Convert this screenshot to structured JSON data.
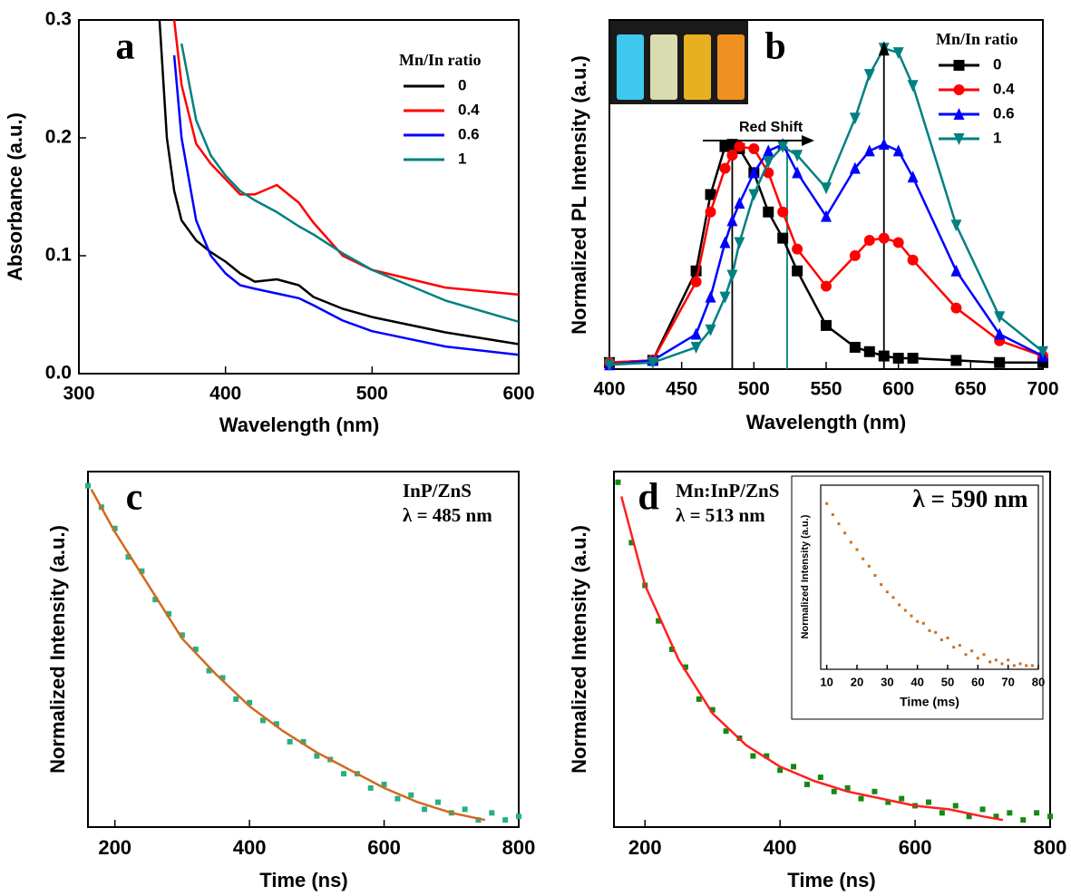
{
  "chart_data": [
    {
      "type": "line",
      "label": "a",
      "xlabel": "Wavelength (nm)",
      "ylabel": "Absorbance (a.u.)",
      "xlim": [
        300,
        600
      ],
      "xticks": [
        300,
        400,
        500,
        600
      ],
      "ylim": [
        0,
        0.3
      ],
      "yticks": [
        {
          "value": 0,
          "label": "0.0"
        },
        0.1,
        0.2,
        0.3
      ],
      "legend_title": "Mn/In ratio",
      "x": [
        355,
        360,
        365,
        370,
        380,
        390,
        400,
        410,
        420,
        435,
        450,
        460,
        480,
        500,
        550,
        600
      ],
      "series": [
        {
          "name": "0",
          "color": "#000000",
          "values": [
            0.3,
            0.2,
            0.155,
            0.13,
            0.113,
            0.103,
            0.095,
            0.085,
            0.078,
            0.08,
            0.075,
            0.065,
            0.055,
            0.048,
            0.035,
            0.025
          ]
        },
        {
          "name": "0.4",
          "color": "#ff0000",
          "values": [
            null,
            null,
            0.3,
            0.245,
            0.195,
            0.178,
            0.165,
            0.152,
            0.152,
            0.16,
            0.145,
            0.128,
            0.1,
            0.088,
            0.073,
            0.067
          ]
        },
        {
          "name": "0.6",
          "color": "#0000ff",
          "values": [
            null,
            null,
            0.27,
            0.2,
            0.13,
            0.1,
            0.085,
            0.075,
            0.072,
            0.068,
            0.064,
            0.058,
            0.045,
            0.036,
            0.023,
            0.016
          ]
        },
        {
          "name": "1",
          "color": "#008080",
          "values": [
            null,
            null,
            null,
            0.28,
            0.215,
            0.185,
            0.168,
            0.155,
            0.147,
            0.137,
            0.125,
            0.118,
            0.102,
            0.088,
            0.062,
            0.044
          ]
        }
      ]
    },
    {
      "type": "line",
      "label": "b",
      "xlabel": "Wavelength (nm)",
      "ylabel": "Normalized PL Intensity (a.u.)",
      "xlim": [
        400,
        700
      ],
      "xticks": [
        400,
        450,
        500,
        550,
        600,
        650,
        700
      ],
      "ylim": [
        0,
        1.6
      ],
      "legend_title": "Mn/In ratio",
      "annotations": [
        "Red Shift"
      ],
      "vlines": [
        {
          "x": 485,
          "y": 1.03,
          "color": "#000000"
        },
        {
          "x": 523,
          "y": 1.02,
          "color": "#008080"
        },
        {
          "x": 590,
          "y": 1.47,
          "color": "#000000"
        }
      ],
      "x": [
        400,
        430,
        460,
        470,
        480,
        485,
        490,
        500,
        510,
        520,
        530,
        550,
        570,
        580,
        590,
        600,
        610,
        640,
        670,
        700
      ],
      "series": [
        {
          "name": "0",
          "color": "#000000",
          "marker": "square",
          "values": [
            0.03,
            0.04,
            0.45,
            0.8,
            1.02,
            1.03,
            1.01,
            0.9,
            0.72,
            0.6,
            0.45,
            0.2,
            0.1,
            0.08,
            0.06,
            0.05,
            0.05,
            0.04,
            0.03,
            0.03
          ]
        },
        {
          "name": "0.4",
          "color": "#ff0000",
          "marker": "circle",
          "values": [
            0.03,
            0.04,
            0.4,
            0.72,
            0.92,
            0.98,
            1.02,
            1.01,
            0.9,
            0.72,
            0.55,
            0.38,
            0.52,
            0.59,
            0.6,
            0.58,
            0.5,
            0.28,
            0.13,
            0.06
          ]
        },
        {
          "name": "0.6",
          "color": "#0000ff",
          "marker": "triangle-up",
          "values": [
            0.02,
            0.04,
            0.16,
            0.33,
            0.58,
            0.68,
            0.76,
            0.9,
            1.0,
            1.03,
            0.9,
            0.7,
            0.92,
            1.0,
            1.03,
            1.0,
            0.88,
            0.45,
            0.16,
            0.06
          ]
        },
        {
          "name": "1",
          "color": "#008080",
          "marker": "triangle-down",
          "values": [
            0.02,
            0.03,
            0.1,
            0.18,
            0.33,
            0.43,
            0.58,
            0.8,
            0.95,
            1.02,
            0.98,
            0.83,
            1.15,
            1.35,
            1.47,
            1.45,
            1.3,
            0.66,
            0.24,
            0.08
          ]
        }
      ]
    },
    {
      "type": "scatter",
      "label": "c",
      "xlabel": "Time (ns)",
      "ylabel": "Normalized Intensity (a.u.)",
      "xlim": [
        160,
        800
      ],
      "xticks": [
        200,
        400,
        600,
        800
      ],
      "ylim": [
        0,
        1
      ],
      "annotations": [
        "InP/ZnS",
        "λ = 485 nm"
      ],
      "annotation_color": "#26b080",
      "series": [
        {
          "style": "points",
          "color": "#26b080",
          "x": [
            160,
            180,
            200,
            220,
            240,
            260,
            280,
            300,
            320,
            340,
            360,
            380,
            400,
            420,
            440,
            460,
            480,
            500,
            520,
            540,
            560,
            580,
            600,
            620,
            640,
            660,
            680,
            700,
            720,
            740,
            760,
            780,
            800
          ],
          "values": [
            0.96,
            0.9,
            0.84,
            0.76,
            0.72,
            0.64,
            0.6,
            0.54,
            0.5,
            0.44,
            0.42,
            0.36,
            0.35,
            0.3,
            0.29,
            0.24,
            0.24,
            0.2,
            0.19,
            0.15,
            0.15,
            0.11,
            0.12,
            0.08,
            0.09,
            0.05,
            0.07,
            0.04,
            0.05,
            0.02,
            0.04,
            0.02,
            0.03
          ]
        },
        {
          "style": "line",
          "color": "#d06a20",
          "x": [
            165,
            200,
            250,
            300,
            350,
            400,
            450,
            500,
            550,
            600,
            650,
            700,
            750
          ],
          "values": [
            0.95,
            0.83,
            0.68,
            0.53,
            0.43,
            0.34,
            0.27,
            0.21,
            0.16,
            0.11,
            0.07,
            0.04,
            0.02
          ]
        }
      ]
    },
    {
      "type": "scatter",
      "label": "d",
      "xlabel": "Time (ns)",
      "ylabel": "Normalized Intensity (a.u.)",
      "xlim": [
        154,
        800
      ],
      "xticks": [
        200,
        400,
        600,
        800
      ],
      "ylim": [
        0,
        1
      ],
      "annotations": [
        "Mn:InP/ZnS",
        "λ = 513 nm"
      ],
      "annotation_color": "#1a8a1a",
      "series": [
        {
          "style": "points",
          "color": "#138a13",
          "x": [
            160,
            180,
            200,
            220,
            240,
            260,
            280,
            300,
            320,
            340,
            360,
            380,
            400,
            420,
            440,
            460,
            480,
            500,
            520,
            540,
            560,
            580,
            600,
            620,
            640,
            660,
            680,
            700,
            720,
            740,
            760,
            780,
            800
          ],
          "values": [
            0.97,
            0.8,
            0.68,
            0.58,
            0.5,
            0.45,
            0.36,
            0.33,
            0.27,
            0.25,
            0.2,
            0.2,
            0.16,
            0.17,
            0.12,
            0.14,
            0.1,
            0.11,
            0.08,
            0.1,
            0.07,
            0.08,
            0.06,
            0.07,
            0.04,
            0.06,
            0.03,
            0.05,
            0.03,
            0.04,
            0.02,
            0.04,
            0.03
          ]
        },
        {
          "style": "line",
          "color": "#ff2020",
          "x": [
            165,
            200,
            250,
            300,
            350,
            400,
            450,
            500,
            550,
            600,
            650,
            700,
            730
          ],
          "values": [
            0.93,
            0.68,
            0.47,
            0.32,
            0.23,
            0.17,
            0.13,
            0.1,
            0.08,
            0.06,
            0.05,
            0.03,
            0.02
          ]
        }
      ]
    },
    {
      "type": "scatter",
      "title": "λ = 590 nm",
      "title_color": "#cc6a1a",
      "xlabel": "Time (ms)",
      "ylabel": "Normalized Intensity (a.u.)",
      "xlim": [
        8,
        80
      ],
      "xticks": [
        10,
        20,
        30,
        40,
        50,
        60,
        70,
        80
      ],
      "ylim": [
        0,
        1
      ],
      "series": [
        {
          "style": "points",
          "color": "#c87020",
          "x": [
            10,
            12,
            14,
            16,
            18,
            20,
            22,
            24,
            26,
            28,
            30,
            32,
            34,
            36,
            38,
            40,
            42,
            44,
            46,
            48,
            50,
            52,
            54,
            56,
            58,
            60,
            62,
            64,
            66,
            68,
            70,
            72,
            74,
            76,
            78
          ],
          "values": [
            0.9,
            0.84,
            0.79,
            0.74,
            0.69,
            0.65,
            0.6,
            0.56,
            0.51,
            0.46,
            0.42,
            0.39,
            0.35,
            0.32,
            0.29,
            0.26,
            0.25,
            0.21,
            0.2,
            0.16,
            0.17,
            0.12,
            0.13,
            0.08,
            0.1,
            0.06,
            0.08,
            0.04,
            0.05,
            0.03,
            0.05,
            0.02,
            0.03,
            0.02,
            0.02
          ]
        }
      ]
    }
  ]
}
